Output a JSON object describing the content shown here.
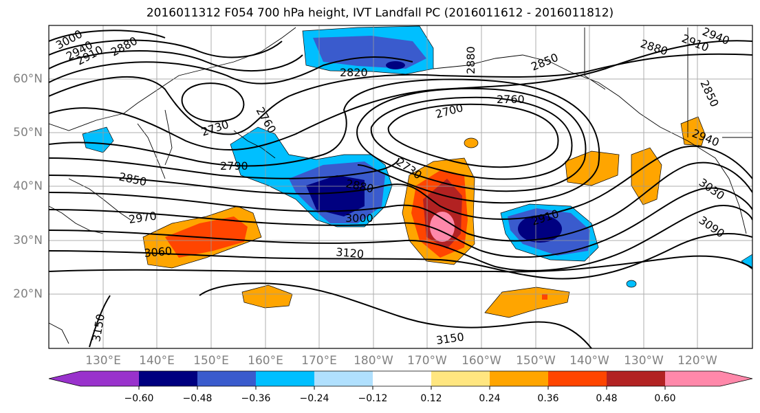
{
  "title": "2016011312 F054 700 hPa height, IVT Landfall PC (2016011612 - 2016011812)",
  "map": {
    "lat_labels": [
      "60°N",
      "50°N",
      "40°N",
      "30°N",
      "20°N"
    ],
    "lon_labels": [
      "130°E",
      "140°E",
      "150°E",
      "160°E",
      "170°E",
      "180°W",
      "170°W",
      "160°W",
      "150°W",
      "140°W",
      "130°W",
      "120°W"
    ],
    "contour_labels": [
      "3000",
      "2940",
      "2910",
      "2880",
      "2820",
      "2880",
      "2850",
      "2910",
      "2940",
      "2880",
      "2730",
      "2760",
      "2700",
      "2760",
      "2850",
      "2790",
      "2850",
      "2880",
      "2730",
      "2940",
      "3030",
      "2970",
      "3000",
      "2910",
      "3090",
      "3060",
      "3120",
      "3150",
      "3150"
    ]
  },
  "colorbar": {
    "ticks": [
      "−0.60",
      "−0.48",
      "−0.36",
      "−0.24",
      "−0.12",
      "0.12",
      "0.24",
      "0.36",
      "0.48",
      "0.60"
    ],
    "colors": [
      "#9932cc",
      "#000080",
      "#3a5bcd",
      "#00bfff",
      "#b0e0fe",
      "#ffffff",
      "#ffe680",
      "#ffa500",
      "#ff4500",
      "#b22222",
      "#ff88aa"
    ]
  }
}
